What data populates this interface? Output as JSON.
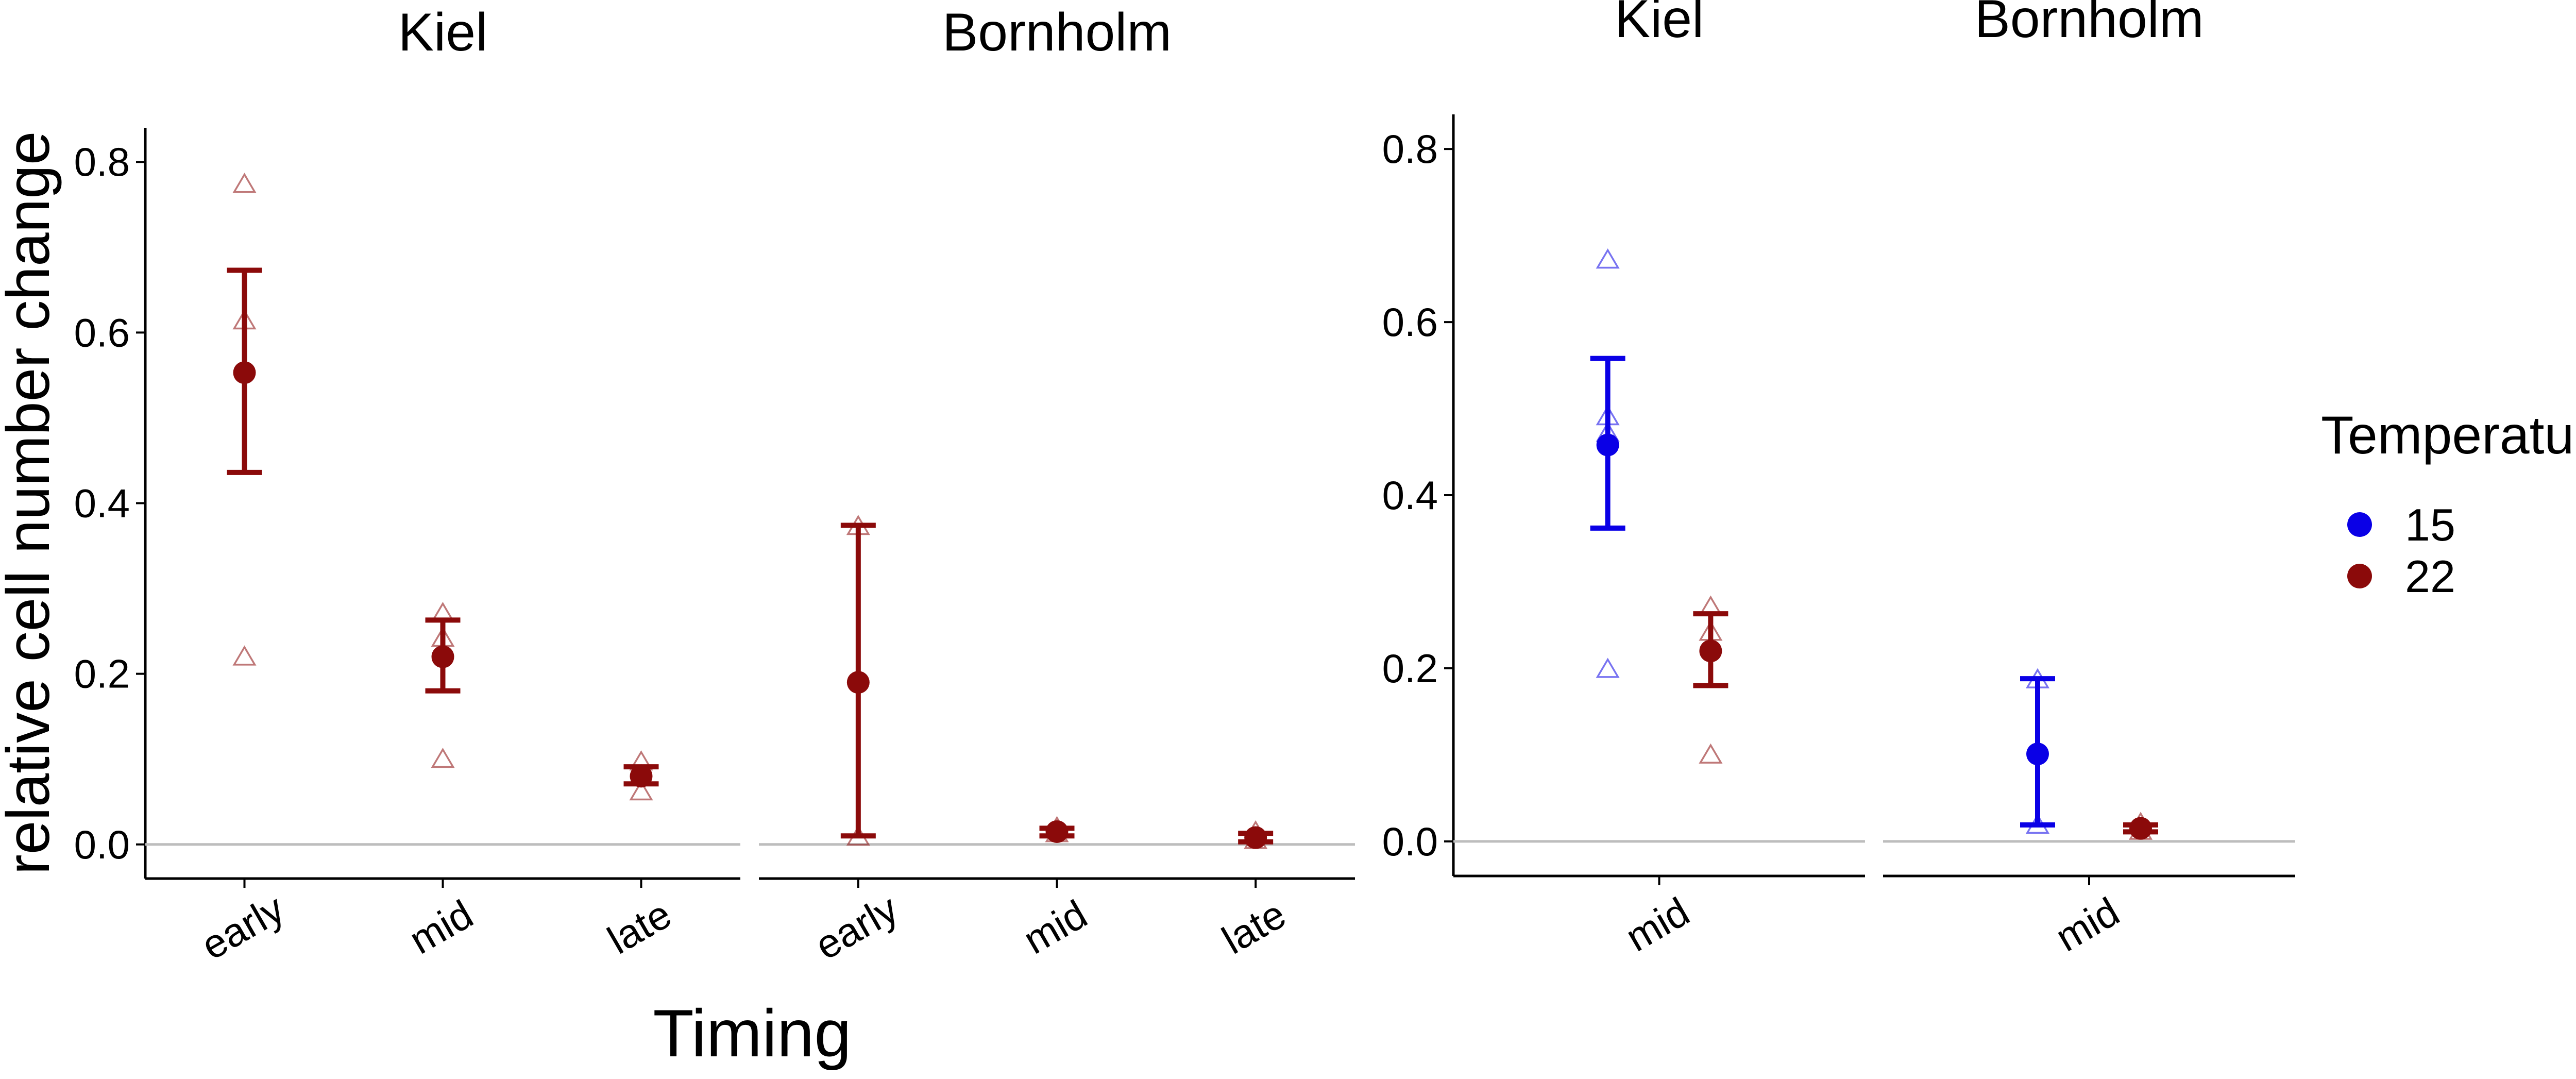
{
  "chart_data": {
    "type": "scatter",
    "xlabel": "Timing",
    "ylabel": "relative cell number change",
    "ylim": [
      -0.04,
      0.84
    ],
    "yticks": [
      "0.0",
      "0.2",
      "0.4",
      "0.6",
      "0.8"
    ],
    "reference_line_y": 0,
    "grid": false,
    "legend": {
      "title": "Temperature",
      "position": "right",
      "items": [
        {
          "label": "15",
          "color": "#0a00e6"
        },
        {
          "label": "22",
          "color": "#8b0a0a"
        }
      ]
    },
    "panels": [
      {
        "id": "left",
        "facets": [
          {
            "strip": "Kiel",
            "categories": [
              "early",
              "mid",
              "late"
            ],
            "series": [
              {
                "temperature": "22",
                "points": [
                  {
                    "x": "early",
                    "mean": 0.553,
                    "lower": 0.436,
                    "upper": 0.673,
                    "replicates": [
                      0.775,
                      0.615,
                      0.221
                    ]
                  },
                  {
                    "x": "mid",
                    "mean": 0.22,
                    "lower": 0.18,
                    "upper": 0.263,
                    "replicates": [
                      0.272,
                      0.243,
                      0.101
                    ]
                  },
                  {
                    "x": "late",
                    "mean": 0.08,
                    "lower": 0.071,
                    "upper": 0.091,
                    "replicates": [
                      0.098,
                      0.082,
                      0.063
                    ]
                  }
                ]
              }
            ]
          },
          {
            "strip": "Bornholm",
            "categories": [
              "early",
              "mid",
              "late"
            ],
            "series": [
              {
                "temperature": "22",
                "points": [
                  {
                    "x": "early",
                    "mean": 0.19,
                    "lower": 0.01,
                    "upper": 0.374,
                    "replicates": [
                      0.374,
                      0.01
                    ]
                  },
                  {
                    "x": "mid",
                    "mean": 0.015,
                    "lower": 0.01,
                    "upper": 0.019,
                    "replicates": [
                      0.021,
                      0.014
                    ]
                  },
                  {
                    "x": "late",
                    "mean": 0.008,
                    "lower": 0.003,
                    "upper": 0.013,
                    "replicates": [
                      0.016,
                      0.006
                    ]
                  }
                ]
              }
            ]
          }
        ]
      },
      {
        "id": "right",
        "facets": [
          {
            "strip": "Kiel",
            "categories": [
              "mid"
            ],
            "series": [
              {
                "temperature": "15",
                "offset": -1,
                "points": [
                  {
                    "x": "mid",
                    "mean": 0.458,
                    "lower": 0.362,
                    "upper": 0.558,
                    "replicates": [
                      0.673,
                      0.492,
                      0.473,
                      0.2
                    ]
                  }
                ]
              },
              {
                "temperature": "22",
                "offset": 1,
                "points": [
                  {
                    "x": "mid",
                    "mean": 0.22,
                    "lower": 0.18,
                    "upper": 0.263,
                    "replicates": [
                      0.272,
                      0.243,
                      0.101
                    ]
                  }
                ]
              }
            ]
          },
          {
            "strip": "Bornholm",
            "categories": [
              "mid"
            ],
            "series": [
              {
                "temperature": "15",
                "offset": -1,
                "points": [
                  {
                    "x": "mid",
                    "mean": 0.101,
                    "lower": 0.019,
                    "upper": 0.188,
                    "replicates": [
                      0.188,
                      0.02
                    ]
                  }
                ]
              },
              {
                "temperature": "22",
                "offset": 1,
                "points": [
                  {
                    "x": "mid",
                    "mean": 0.015,
                    "lower": 0.011,
                    "upper": 0.019,
                    "replicates": [
                      0.022,
                      0.013
                    ]
                  }
                ]
              }
            ]
          }
        ]
      }
    ]
  }
}
